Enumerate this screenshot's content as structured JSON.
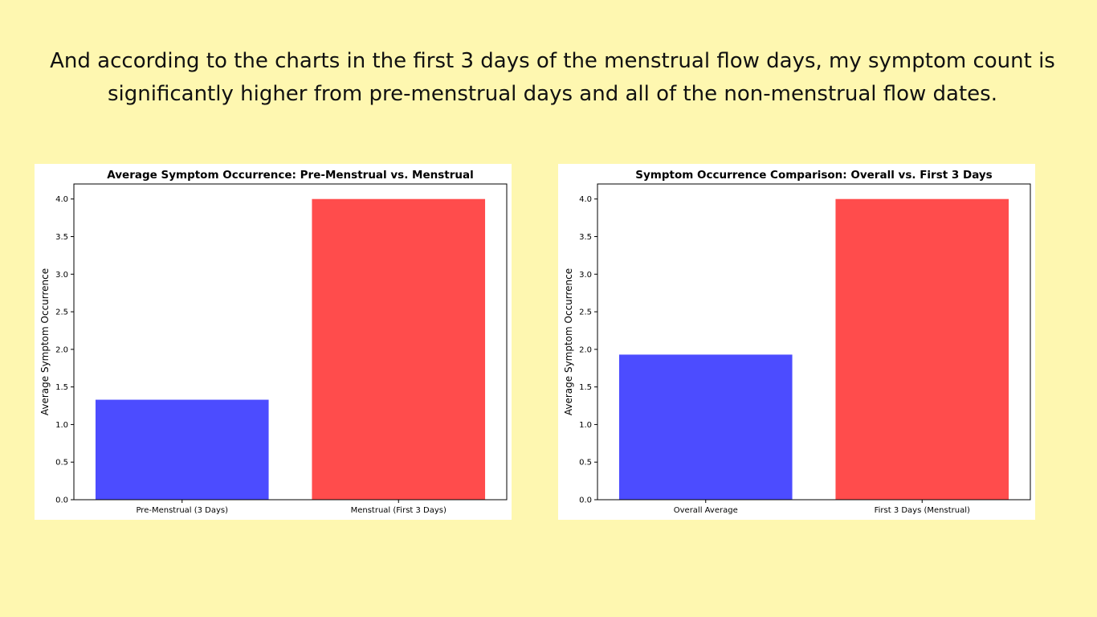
{
  "slide": {
    "headline": "And according to the charts in the first 3 days of the menstrual flow days, my symptom count is significantly higher from pre-menstrual days and all of the non-menstrual flow dates."
  },
  "colors": {
    "background": "#fef7b0",
    "bar_blue": "#4c4cff",
    "bar_red": "#ff4c4c"
  },
  "chart_data": [
    {
      "type": "bar",
      "title": "Average Symptom Occurrence: Pre-Menstrual vs. Menstrual",
      "xlabel": "",
      "ylabel": "Average Symptom Occurrence",
      "categories": [
        "Pre-Menstrual (3 Days)",
        "Menstrual (First 3 Days)"
      ],
      "values": [
        1.33,
        4.0
      ],
      "colors": [
        "#4c4cff",
        "#ff4c4c"
      ],
      "ylim": [
        0,
        4.2
      ],
      "yticks": [
        "0.0",
        "0.5",
        "1.0",
        "1.5",
        "2.0",
        "2.5",
        "3.0",
        "3.5",
        "4.0"
      ],
      "grid": false,
      "legend": "none"
    },
    {
      "type": "bar",
      "title": "Symptom Occurrence Comparison: Overall vs. First 3 Days",
      "xlabel": "",
      "ylabel": "Average Symptom Occurrence",
      "categories": [
        "Overall Average",
        "First 3 Days (Menstrual)"
      ],
      "values": [
        1.93,
        4.0
      ],
      "colors": [
        "#4c4cff",
        "#ff4c4c"
      ],
      "ylim": [
        0,
        4.2
      ],
      "yticks": [
        "0.0",
        "0.5",
        "1.0",
        "1.5",
        "2.0",
        "2.5",
        "3.0",
        "3.5",
        "4.0"
      ],
      "grid": false,
      "legend": "none"
    }
  ]
}
